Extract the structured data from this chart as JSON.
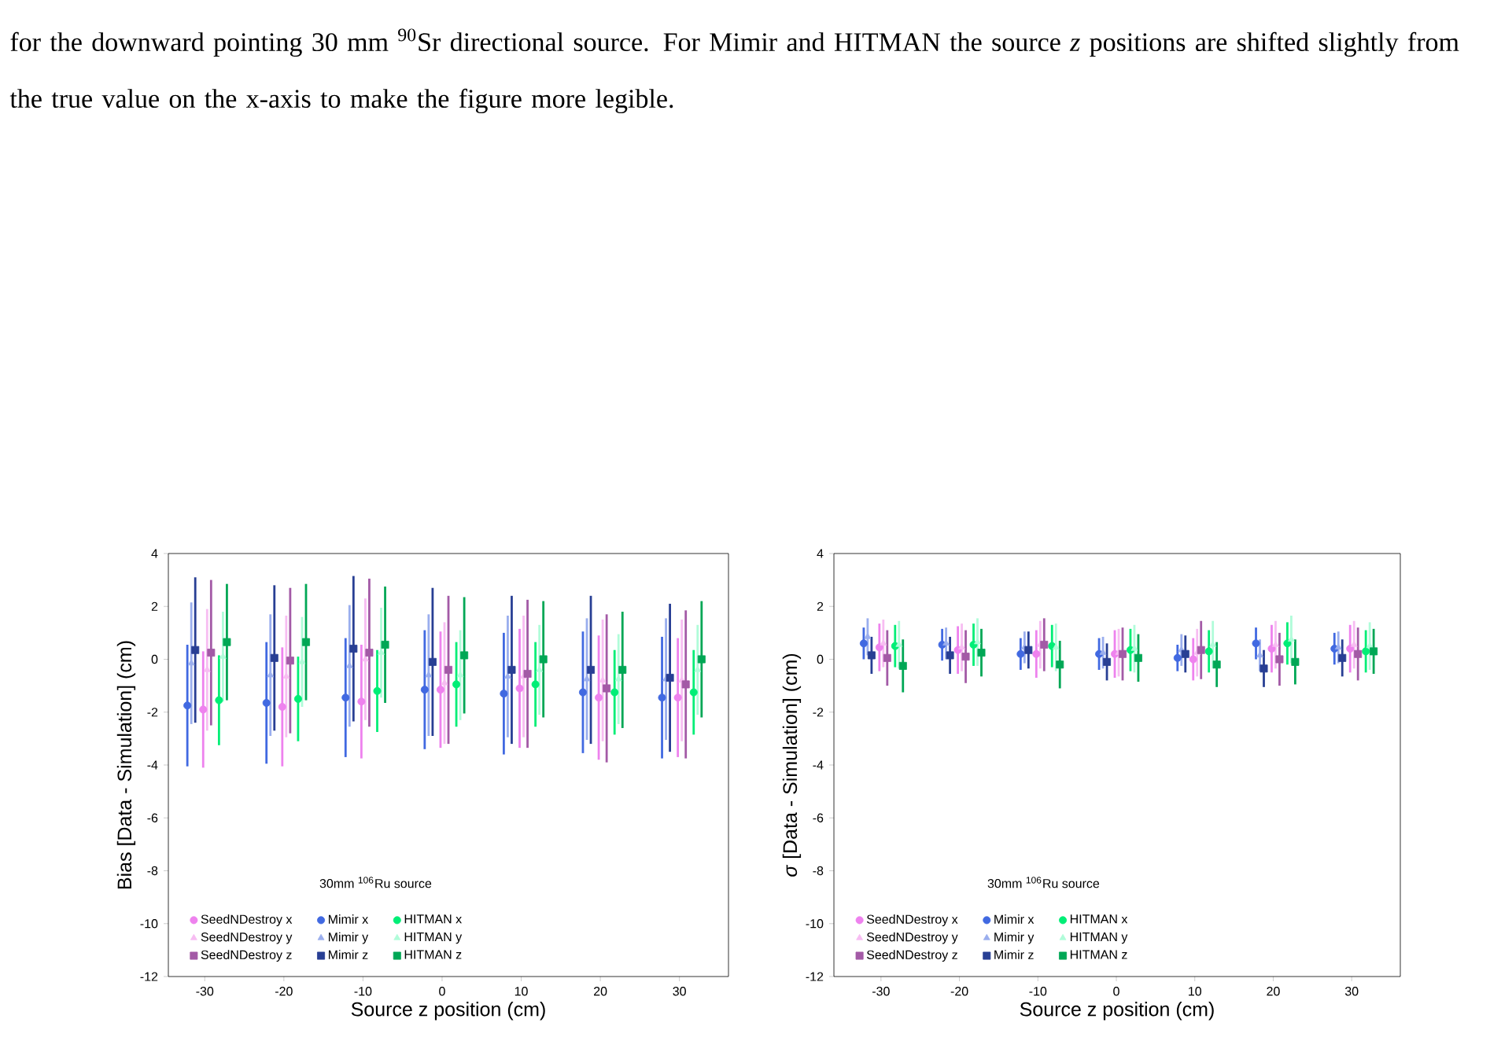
{
  "chart_data": [
    {
      "type": "scatter",
      "annotations": [
        "for the downward pointing 30 mm $^{90}$Sr directional source. For Mimir and HITMAN the source *z* positions are shifted slightly from the true value on the x-axis to make the figure more legible."
      ],
      "xlabel": "Source z position (cm)",
      "ylabel": "Bias [Data - Simulation] (cm)",
      "xlim": [
        -34.6,
        36.2
      ],
      "ylim": [
        -12,
        4
      ],
      "xticks": [
        -30,
        -20,
        -10,
        0,
        10,
        20,
        30
      ],
      "yticks": [
        -12,
        -10,
        -8,
        -6,
        -4,
        -2,
        0,
        2,
        4
      ],
      "legend": "bottom left",
      "legend_title": "30mm $^{106}$Ru source",
      "series": [
        {
          "name": "SeedNDestroy x",
          "color": "#ee82ee",
          "marker": "circle",
          "x": [
            -30.2,
            -20.2,
            -10.2,
            -0.2,
            9.8,
            19.8,
            29.8
          ],
          "values": [
            -1.9,
            -1.8,
            -1.6,
            -1.15,
            -1.1,
            -1.45,
            -1.45
          ],
          "errors": [
            2.2,
            2.25,
            2.15,
            2.2,
            2.25,
            2.35,
            2.25
          ]
        },
        {
          "name": "Mimir x",
          "color": "#4169e1",
          "marker": "circle",
          "x": [
            -32.2,
            -22.2,
            -12.2,
            -2.2,
            7.8,
            17.8,
            27.8
          ],
          "values": [
            -1.75,
            -1.65,
            -1.45,
            -1.15,
            -1.3,
            -1.25,
            -1.45
          ],
          "errors": [
            2.3,
            2.3,
            2.25,
            2.25,
            2.3,
            2.3,
            2.3
          ]
        },
        {
          "name": "HITMAN x",
          "color": "#00ee76",
          "marker": "circle",
          "x": [
            -28.2,
            -18.2,
            -8.2,
            1.8,
            11.8,
            21.8,
            31.8
          ],
          "values": [
            -1.55,
            -1.5,
            -1.2,
            -0.95,
            -0.95,
            -1.25,
            -1.25
          ],
          "errors": [
            1.7,
            1.6,
            1.55,
            1.6,
            1.6,
            1.6,
            1.6
          ]
        },
        {
          "name": "SeedNDestroy y",
          "color": "#f7bdf2",
          "marker": "triangle",
          "x": [
            -29.7,
            -19.7,
            -9.7,
            0.3,
            10.3,
            20.3,
            30.3
          ],
          "values": [
            -0.4,
            -0.65,
            0.0,
            -0.9,
            -0.65,
            -0.8,
            -0.8
          ],
          "errors": [
            2.3,
            2.3,
            2.3,
            2.3,
            2.3,
            2.3,
            2.3
          ]
        },
        {
          "name": "Mimir y",
          "color": "#9aaeee",
          "marker": "triangle",
          "x": [
            -31.7,
            -21.7,
            -11.7,
            -1.7,
            8.3,
            18.3,
            28.3
          ],
          "values": [
            -0.15,
            -0.6,
            -0.25,
            -0.6,
            -0.65,
            -0.75,
            -0.75
          ],
          "errors": [
            2.3,
            2.3,
            2.3,
            2.3,
            2.3,
            2.3,
            2.3
          ]
        },
        {
          "name": "HITMAN y",
          "color": "#b0fcd9",
          "marker": "triangle",
          "x": [
            -27.7,
            -17.7,
            -7.7,
            2.3,
            12.3,
            22.3,
            32.3
          ],
          "values": [
            0.1,
            -0.1,
            0.25,
            -0.6,
            -0.4,
            -0.75,
            -0.4
          ],
          "errors": [
            1.7,
            1.7,
            1.7,
            1.7,
            1.7,
            1.7,
            1.7
          ]
        },
        {
          "name": "SeedNDestroy z",
          "color": "#a35aa6",
          "marker": "square",
          "x": [
            -29.2,
            -19.2,
            -9.2,
            0.8,
            10.8,
            20.8,
            30.8
          ],
          "values": [
            0.25,
            -0.05,
            0.25,
            -0.4,
            -0.55,
            -1.1,
            -0.95
          ],
          "errors": [
            2.75,
            2.75,
            2.8,
            2.8,
            2.8,
            2.8,
            2.8
          ]
        },
        {
          "name": "Mimir z",
          "color": "#283f94",
          "marker": "square",
          "x": [
            -31.2,
            -21.2,
            -11.2,
            -1.2,
            8.8,
            18.8,
            28.8
          ],
          "values": [
            0.35,
            0.05,
            0.4,
            -0.1,
            -0.4,
            -0.4,
            -0.7
          ],
          "errors": [
            2.75,
            2.75,
            2.75,
            2.8,
            2.8,
            2.8,
            2.8
          ]
        },
        {
          "name": "HITMAN z",
          "color": "#00a755",
          "marker": "square",
          "x": [
            -27.2,
            -17.2,
            -7.2,
            2.8,
            12.8,
            22.8,
            32.8
          ],
          "values": [
            0.65,
            0.65,
            0.55,
            0.15,
            0.0,
            -0.4,
            0.0
          ],
          "errors": [
            2.2,
            2.2,
            2.2,
            2.2,
            2.2,
            2.2,
            2.2
          ]
        }
      ]
    },
    {
      "type": "scatter",
      "xlabel": "Source z position (cm)",
      "ylabel": "*σ* [Data - Simulation] (cm)",
      "xlim": [
        -36.0,
        36.2
      ],
      "ylim": [
        -12,
        4
      ],
      "xticks": [
        -30,
        -20,
        -10,
        0,
        10,
        20,
        30
      ],
      "yticks": [
        -12,
        -10,
        -8,
        -6,
        -4,
        -2,
        0,
        2,
        4
      ],
      "legend": "bottom left",
      "legend_title": "30mm $^{106}$Ru source",
      "series": [
        {
          "name": "SeedNDestroy x",
          "color": "#ee82ee",
          "marker": "circle",
          "x": [
            -30.2,
            -20.2,
            -10.2,
            -0.2,
            9.8,
            19.8,
            29.8
          ],
          "values": [
            0.45,
            0.35,
            0.2,
            0.2,
            0.0,
            0.4,
            0.4
          ],
          "errors": [
            0.9,
            0.9,
            0.9,
            0.9,
            0.8,
            0.9,
            0.9
          ]
        },
        {
          "name": "Mimir x",
          "color": "#4169e1",
          "marker": "circle",
          "x": [
            -32.2,
            -22.2,
            -12.2,
            -2.2,
            7.8,
            17.8,
            27.8
          ],
          "values": [
            0.6,
            0.55,
            0.2,
            0.2,
            0.05,
            0.6,
            0.4
          ],
          "errors": [
            0.6,
            0.6,
            0.6,
            0.6,
            0.5,
            0.6,
            0.6
          ]
        },
        {
          "name": "HITMAN x",
          "color": "#00ee76",
          "marker": "circle",
          "x": [
            -28.2,
            -18.2,
            -8.2,
            1.8,
            11.8,
            21.8,
            31.8
          ],
          "values": [
            0.5,
            0.55,
            0.5,
            0.35,
            0.3,
            0.6,
            0.3
          ],
          "errors": [
            0.8,
            0.8,
            0.8,
            0.8,
            0.8,
            0.8,
            0.8
          ]
        },
        {
          "name": "SeedNDestroy y",
          "color": "#f7bdf2",
          "marker": "triangle",
          "x": [
            -29.7,
            -19.7,
            -9.7,
            0.3,
            10.3,
            20.3,
            30.3
          ],
          "values": [
            0.6,
            0.45,
            0.55,
            0.25,
            0.25,
            0.55,
            0.55
          ],
          "errors": [
            0.9,
            0.9,
            0.9,
            0.9,
            0.9,
            0.9,
            0.9
          ]
        },
        {
          "name": "Mimir y",
          "color": "#9aaeee",
          "marker": "triangle",
          "x": [
            -31.7,
            -21.7,
            -11.7,
            -1.7,
            8.3,
            18.3,
            28.3
          ],
          "values": [
            0.85,
            0.6,
            0.45,
            0.25,
            0.35,
            0.15,
            0.45
          ],
          "errors": [
            0.7,
            0.6,
            0.6,
            0.6,
            0.6,
            0.6,
            0.6
          ]
        },
        {
          "name": "HITMAN y",
          "color": "#b0fcd9",
          "marker": "triangle",
          "x": [
            -27.7,
            -17.7,
            -7.7,
            2.3,
            12.3,
            22.3,
            32.3
          ],
          "values": [
            0.55,
            0.65,
            0.45,
            0.4,
            0.55,
            0.75,
            0.5
          ],
          "errors": [
            0.9,
            0.9,
            0.9,
            0.9,
            0.9,
            0.9,
            0.9
          ]
        },
        {
          "name": "SeedNDestroy z",
          "color": "#a35aa6",
          "marker": "square",
          "x": [
            -29.2,
            -19.2,
            -9.2,
            0.8,
            10.8,
            20.8,
            30.8
          ],
          "values": [
            0.05,
            0.1,
            0.55,
            0.2,
            0.35,
            0.0,
            0.2
          ],
          "errors": [
            1.05,
            1.0,
            1.0,
            1.0,
            1.1,
            1.0,
            1.0
          ]
        },
        {
          "name": "Mimir z",
          "color": "#283f94",
          "marker": "square",
          "x": [
            -31.2,
            -21.2,
            -11.2,
            -1.2,
            8.8,
            18.8,
            28.8
          ],
          "values": [
            0.15,
            0.15,
            0.35,
            -0.1,
            0.2,
            -0.35,
            0.05
          ],
          "errors": [
            0.7,
            0.7,
            0.7,
            0.7,
            0.7,
            0.7,
            0.7
          ]
        },
        {
          "name": "HITMAN z",
          "color": "#00a755",
          "marker": "square",
          "x": [
            -27.2,
            -17.2,
            -7.2,
            2.8,
            12.8,
            22.8,
            32.8
          ],
          "values": [
            -0.25,
            0.25,
            -0.2,
            0.05,
            -0.2,
            -0.1,
            0.3
          ],
          "errors": [
            1.0,
            0.9,
            0.9,
            0.9,
            0.85,
            0.85,
            0.85
          ]
        }
      ]
    }
  ]
}
